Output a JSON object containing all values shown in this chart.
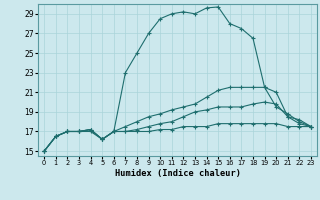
{
  "title": "",
  "xlabel": "Humidex (Indice chaleur)",
  "bg_color": "#cce8ed",
  "grid_color": "#aad4da",
  "line_color": "#1e6e6e",
  "xlim": [
    -0.5,
    23.5
  ],
  "ylim": [
    14.5,
    30.0
  ],
  "xticks": [
    0,
    1,
    2,
    3,
    4,
    5,
    6,
    7,
    8,
    9,
    10,
    11,
    12,
    13,
    14,
    15,
    16,
    17,
    18,
    19,
    20,
    21,
    22,
    23
  ],
  "yticks": [
    15,
    17,
    19,
    21,
    23,
    25,
    27,
    29
  ],
  "x": [
    0,
    1,
    2,
    3,
    4,
    5,
    6,
    7,
    8,
    9,
    10,
    11,
    12,
    13,
    14,
    15,
    16,
    17,
    18,
    19,
    20,
    21,
    22,
    23
  ],
  "lines": [
    [
      15,
      16.5,
      17,
      17,
      17,
      16.2,
      17,
      23,
      25,
      27,
      28.5,
      29,
      29.2,
      29.0,
      29.6,
      29.7,
      28.0,
      27.5,
      26.5,
      21.5,
      19.5,
      18.8,
      18.0,
      17.5
    ],
    [
      15,
      16.5,
      17,
      17,
      17.2,
      16.2,
      17,
      17.5,
      18.0,
      18.5,
      18.8,
      19.2,
      19.5,
      19.8,
      20.5,
      21.2,
      21.5,
      21.5,
      21.5,
      21.5,
      21.0,
      18.5,
      18.2,
      17.5
    ],
    [
      15,
      16.5,
      17,
      17,
      17.2,
      16.2,
      17,
      17.0,
      17.2,
      17.5,
      17.8,
      18.0,
      18.5,
      19.0,
      19.2,
      19.5,
      19.5,
      19.5,
      19.8,
      20.0,
      19.8,
      18.5,
      17.8,
      17.5
    ],
    [
      15,
      16.5,
      17,
      17,
      17.2,
      16.2,
      17,
      17.0,
      17.0,
      17.0,
      17.2,
      17.2,
      17.5,
      17.5,
      17.5,
      17.8,
      17.8,
      17.8,
      17.8,
      17.8,
      17.8,
      17.5,
      17.5,
      17.5
    ]
  ]
}
